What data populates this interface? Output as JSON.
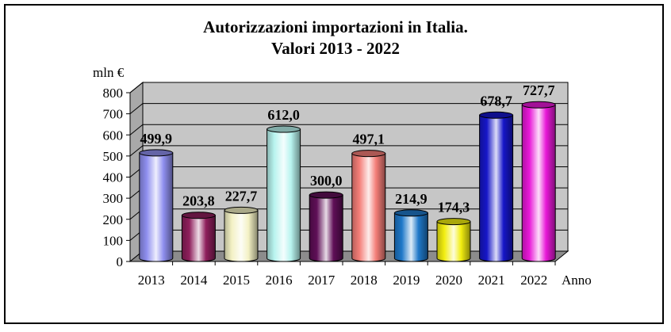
{
  "chart_data": {
    "type": "bar",
    "title": "Autorizzazioni importazioni in Italia.",
    "subtitle": "Valori 2013 - 2022",
    "ylabel": "mln €",
    "xlabel": "Anno",
    "categories": [
      "2013",
      "2014",
      "2015",
      "2016",
      "2017",
      "2018",
      "2019",
      "2020",
      "2021",
      "2022"
    ],
    "values": [
      499.9,
      203.8,
      227.7,
      612.0,
      300.0,
      497.1,
      214.9,
      174.3,
      678.7,
      727.7
    ],
    "value_labels": [
      "499,9",
      "203,8",
      "227,7",
      "612,0",
      "300,0",
      "497,1",
      "214,9",
      "174,3",
      "678,7",
      "727,7"
    ],
    "yticks": [
      "0",
      "100",
      "200",
      "300",
      "400",
      "500",
      "600",
      "700",
      "800"
    ],
    "ylim": [
      0,
      800
    ],
    "grid": true,
    "legend": "none",
    "colors": [
      "#8f8fef",
      "#8e1f5c",
      "#f3f1c4",
      "#b8f4ef",
      "#5f0f57",
      "#f47e78",
      "#1f78c8",
      "#f2ee10",
      "#1616c8",
      "#e818d8"
    ],
    "plot_bg": "#c6c6c6",
    "floor_color": "#8c8c8c"
  }
}
